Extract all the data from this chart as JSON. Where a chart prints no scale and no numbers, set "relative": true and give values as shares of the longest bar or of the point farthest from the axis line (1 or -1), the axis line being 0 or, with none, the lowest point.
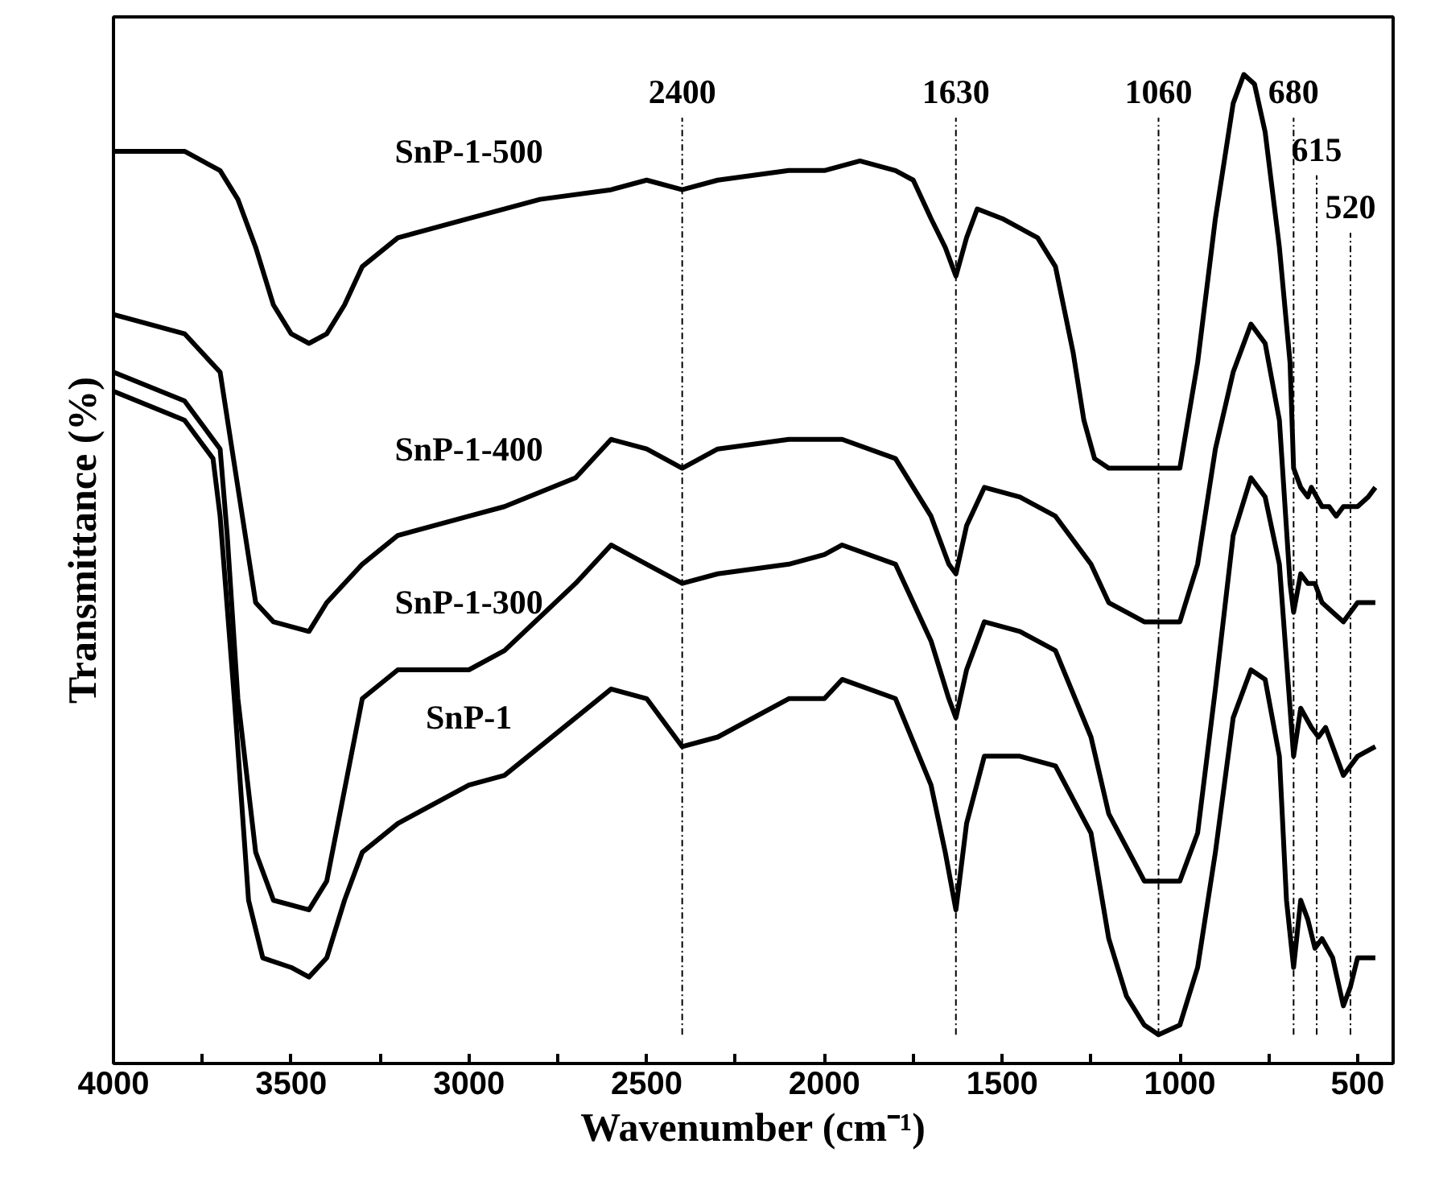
{
  "chart_data": {
    "type": "line",
    "relative": true,
    "xlabel": "Wavenumber (cm⁻¹)",
    "ylabel": "Transmittance (%)",
    "xlim": [
      4000,
      400
    ],
    "xticks": [
      4000,
      {
        "value": 3750,
        "label": null
      },
      3500,
      {
        "value": 3250,
        "label": null
      },
      3000,
      {
        "value": 2750,
        "label": null
      },
      2500,
      {
        "value": 2250,
        "label": null
      },
      2000,
      {
        "value": 1750,
        "label": null
      },
      1500,
      {
        "value": 1250,
        "label": null
      },
      1000,
      {
        "value": 750,
        "label": null
      },
      500
    ],
    "tick_labels": "x",
    "grid": false,
    "line_style": "solid",
    "series": [
      {
        "name": "SnP-1-500",
        "color": "#000000",
        "x": [
          4000,
          3800,
          3700,
          3650,
          3600,
          3550,
          3500,
          3450,
          3400,
          3350,
          3300,
          3200,
          3000,
          2800,
          2600,
          2500,
          2400,
          2300,
          2100,
          2000,
          1900,
          1800,
          1750,
          1700,
          1660,
          1630,
          1600,
          1570,
          1500,
          1400,
          1350,
          1300,
          1270,
          1240,
          1200,
          1100,
          1000,
          950,
          900,
          850,
          820,
          790,
          760,
          720,
          690,
          680,
          660,
          640,
          630,
          600,
          580,
          560,
          540,
          500,
          470,
          450
        ],
        "values": [
          0.92,
          0.92,
          0.9,
          0.87,
          0.82,
          0.76,
          0.73,
          0.72,
          0.73,
          0.76,
          0.8,
          0.83,
          0.85,
          0.87,
          0.88,
          0.89,
          0.88,
          0.89,
          0.9,
          0.9,
          0.91,
          0.9,
          0.89,
          0.85,
          0.82,
          0.79,
          0.83,
          0.86,
          0.85,
          0.83,
          0.8,
          0.71,
          0.64,
          0.6,
          0.59,
          0.59,
          0.59,
          0.7,
          0.85,
          0.97,
          1.0,
          0.99,
          0.94,
          0.82,
          0.7,
          0.59,
          0.57,
          0.56,
          0.57,
          0.55,
          0.55,
          0.54,
          0.55,
          0.55,
          0.56,
          0.57
        ]
      },
      {
        "name": "SnP-1-400",
        "color": "#000000",
        "x": [
          4000,
          3800,
          3700,
          3650,
          3600,
          3550,
          3450,
          3400,
          3300,
          3200,
          3000,
          2900,
          2700,
          2600,
          2500,
          2400,
          2300,
          2100,
          2000,
          1950,
          1800,
          1700,
          1650,
          1630,
          1600,
          1550,
          1450,
          1350,
          1250,
          1200,
          1100,
          1000,
          950,
          900,
          850,
          800,
          760,
          720,
          690,
          680,
          660,
          640,
          620,
          600,
          570,
          540,
          500,
          450
        ],
        "values": [
          0.75,
          0.73,
          0.69,
          0.57,
          0.45,
          0.43,
          0.42,
          0.45,
          0.49,
          0.52,
          0.54,
          0.55,
          0.58,
          0.62,
          0.61,
          0.59,
          0.61,
          0.62,
          0.62,
          0.62,
          0.6,
          0.54,
          0.49,
          0.48,
          0.53,
          0.57,
          0.56,
          0.54,
          0.49,
          0.45,
          0.43,
          0.43,
          0.49,
          0.61,
          0.69,
          0.74,
          0.72,
          0.64,
          0.47,
          0.44,
          0.48,
          0.47,
          0.47,
          0.45,
          0.44,
          0.43,
          0.45,
          0.45
        ]
      },
      {
        "name": "SnP-1-300",
        "color": "#000000",
        "x": [
          4000,
          3800,
          3700,
          3680,
          3650,
          3600,
          3550,
          3450,
          3400,
          3300,
          3200,
          3000,
          2900,
          2700,
          2600,
          2500,
          2400,
          2300,
          2100,
          2000,
          1950,
          1800,
          1700,
          1650,
          1630,
          1600,
          1550,
          1450,
          1350,
          1250,
          1200,
          1100,
          1000,
          950,
          900,
          850,
          800,
          760,
          720,
          690,
          680,
          660,
          630,
          610,
          590,
          560,
          540,
          500,
          450
        ],
        "values": [
          0.69,
          0.66,
          0.61,
          0.52,
          0.35,
          0.19,
          0.14,
          0.13,
          0.16,
          0.35,
          0.38,
          0.38,
          0.4,
          0.47,
          0.51,
          0.49,
          0.47,
          0.48,
          0.49,
          0.5,
          0.51,
          0.49,
          0.41,
          0.35,
          0.33,
          0.38,
          0.43,
          0.42,
          0.4,
          0.31,
          0.23,
          0.16,
          0.16,
          0.21,
          0.36,
          0.52,
          0.58,
          0.56,
          0.49,
          0.34,
          0.29,
          0.34,
          0.32,
          0.31,
          0.32,
          0.29,
          0.27,
          0.29,
          0.3
        ]
      },
      {
        "name": "SnP-1",
        "color": "#000000",
        "x": [
          4000,
          3800,
          3720,
          3700,
          3660,
          3620,
          3580,
          3500,
          3450,
          3400,
          3350,
          3300,
          3200,
          3000,
          2900,
          2700,
          2600,
          2500,
          2400,
          2300,
          2100,
          2000,
          1950,
          1800,
          1700,
          1660,
          1630,
          1600,
          1550,
          1450,
          1350,
          1250,
          1200,
          1150,
          1100,
          1060,
          1000,
          950,
          900,
          850,
          800,
          760,
          720,
          700,
          680,
          660,
          640,
          620,
          600,
          570,
          540,
          520,
          500,
          460,
          450
        ],
        "values": [
          0.67,
          0.64,
          0.6,
          0.54,
          0.35,
          0.14,
          0.08,
          0.07,
          0.06,
          0.08,
          0.14,
          0.19,
          0.22,
          0.26,
          0.27,
          0.33,
          0.36,
          0.35,
          0.3,
          0.31,
          0.35,
          0.35,
          0.37,
          0.35,
          0.26,
          0.19,
          0.13,
          0.22,
          0.29,
          0.29,
          0.28,
          0.21,
          0.1,
          0.04,
          0.01,
          0,
          0.01,
          0.07,
          0.19,
          0.33,
          0.38,
          0.37,
          0.29,
          0.14,
          0.07,
          0.14,
          0.12,
          0.09,
          0.1,
          0.08,
          0.03,
          0.05,
          0.08,
          0.08,
          0.08
        ]
      }
    ],
    "ref_lines": [
      {
        "axis": "x",
        "value": 2400,
        "label": "2400",
        "line_style": "dashed"
      },
      {
        "axis": "x",
        "value": 1630,
        "label": "1630",
        "line_style": "dashed"
      },
      {
        "axis": "x",
        "value": 1060,
        "label": "1060",
        "line_style": "dashed"
      },
      {
        "axis": "x",
        "value": 680,
        "label": "680",
        "line_style": "dashed"
      },
      {
        "axis": "x",
        "value": 615,
        "label": "615",
        "line_style": "dashed"
      },
      {
        "axis": "x",
        "value": 520,
        "label": "520",
        "line_style": "dashed"
      }
    ]
  }
}
